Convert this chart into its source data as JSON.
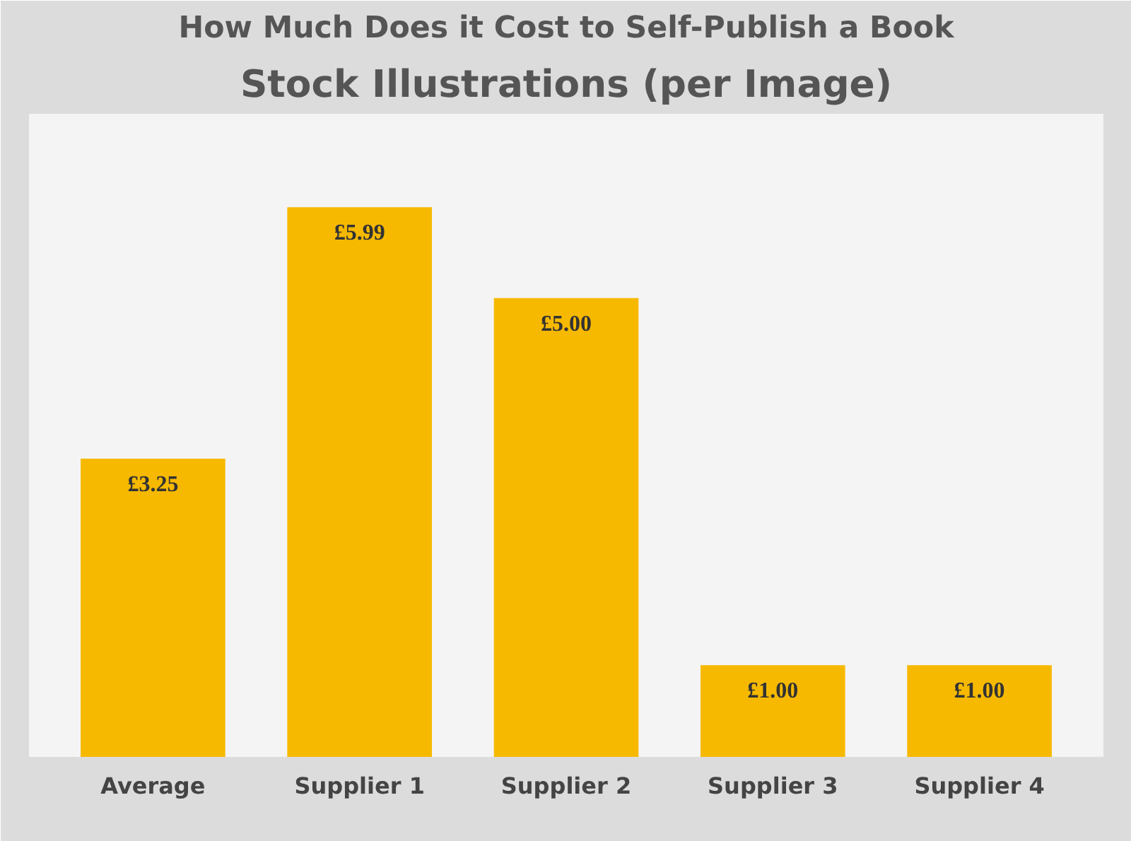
{
  "chart_data": {
    "type": "bar",
    "title": "How Much Does it Cost to Self-Publish a Book",
    "subtitle": "Stock Illustrations (per Image)",
    "categories": [
      "Average",
      "Supplier 1",
      "Supplier 2",
      "Supplier 3",
      "Supplier 4"
    ],
    "values": [
      3.25,
      5.99,
      5.0,
      1.0,
      1.0
    ],
    "value_labels": [
      "£3.25",
      "£5.99",
      "£5.00",
      "£1.00",
      "£1.00"
    ],
    "color": "#f7b900",
    "grid": false
  }
}
